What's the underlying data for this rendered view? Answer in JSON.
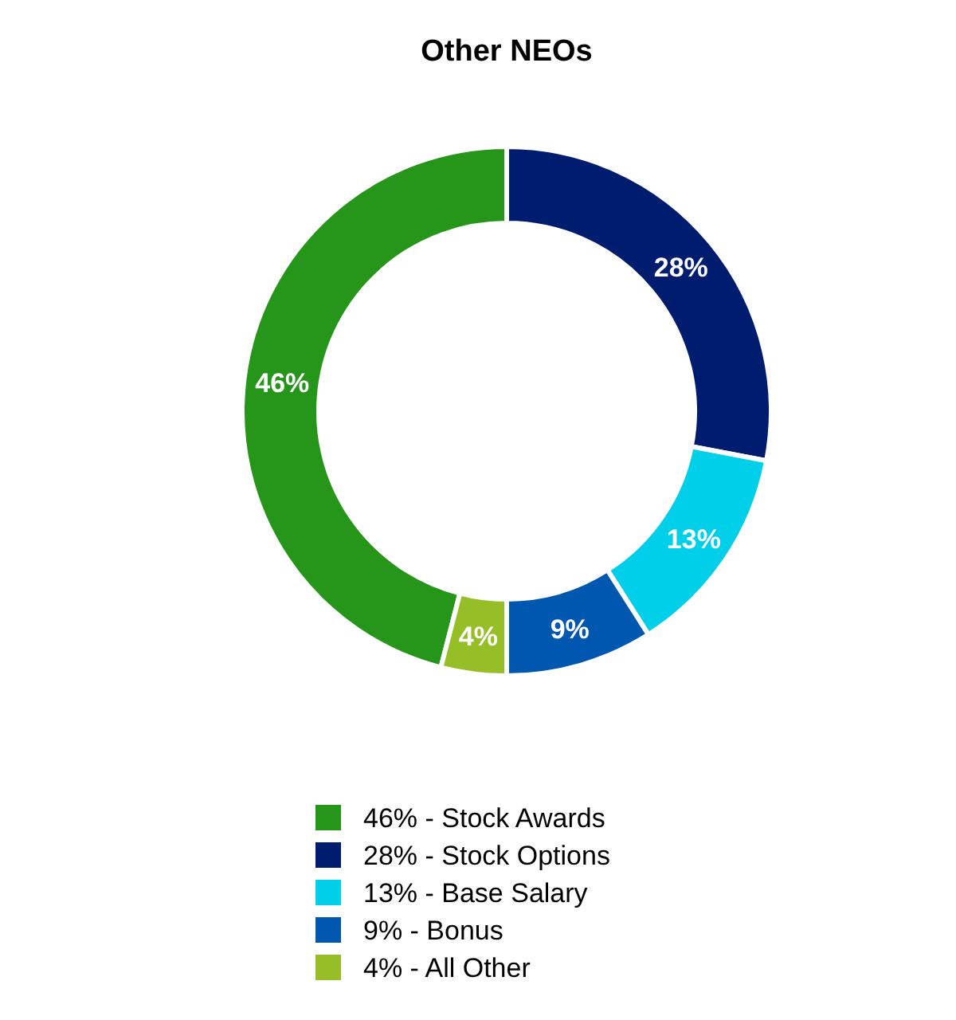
{
  "chart_data": {
    "type": "donut",
    "title": "Other NEOs",
    "categories": [
      "46% - Stock Awards",
      "28% - Stock Options",
      "13% - Base Salary",
      "9% - Bonus",
      "4% - All Other"
    ],
    "values": [
      46,
      28,
      13,
      9,
      4
    ],
    "value_labels": [
      "46%",
      "28%",
      "13%",
      "9%",
      "4%"
    ],
    "colors": [
      "#26961a",
      "#001c6e",
      "#00cfea",
      "#0057b0",
      "#96be27"
    ],
    "legend": "bottom"
  }
}
